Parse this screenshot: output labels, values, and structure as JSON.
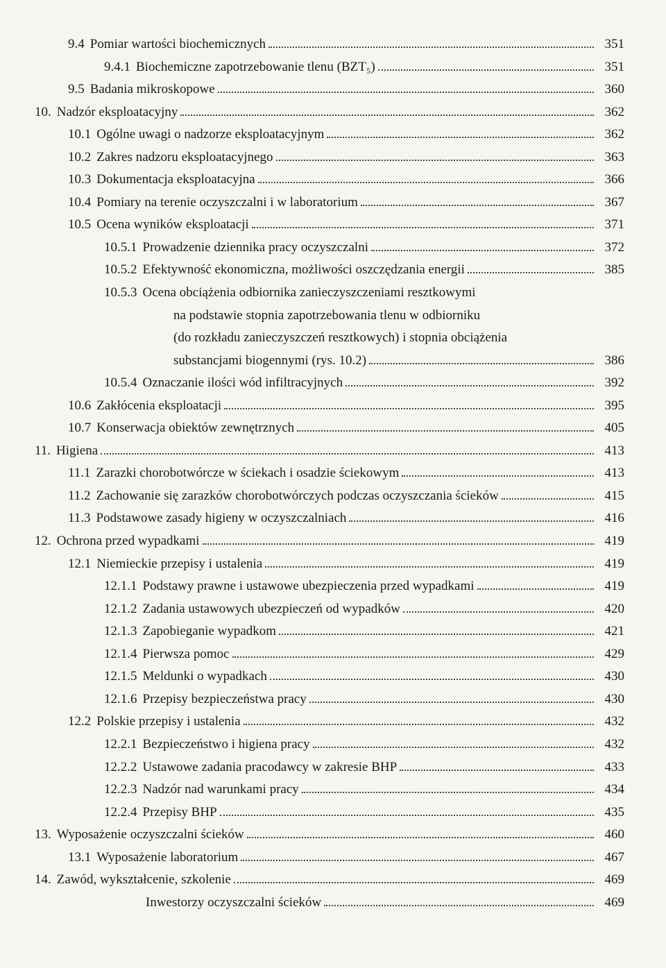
{
  "entries": [
    {
      "indent": 1,
      "num": "9.4",
      "label": "Pomiar wartości biochemicznych",
      "page": "351"
    },
    {
      "indent": 2,
      "num": "9.4.1",
      "label": "Biochemiczne zapotrzebowanie tlenu (BZT₅)",
      "page": "351"
    },
    {
      "indent": 1,
      "num": "9.5",
      "label": "Badania mikroskopowe",
      "page": "360"
    },
    {
      "indent": 0,
      "num": "10.",
      "label": "Nadzór eksploatacyjny",
      "page": "362"
    },
    {
      "indent": 1,
      "num": "10.1",
      "label": "Ogólne uwagi o nadzorze eksploatacyjnym",
      "page": "362"
    },
    {
      "indent": 1,
      "num": "10.2",
      "label": "Zakres nadzoru eksploatacyjnego",
      "page": "363"
    },
    {
      "indent": 1,
      "num": "10.3",
      "label": "Dokumentacja eksploatacyjna",
      "page": "366"
    },
    {
      "indent": 1,
      "num": "10.4",
      "label": "Pomiary na terenie oczyszczalni i w laboratorium",
      "page": "367"
    },
    {
      "indent": 1,
      "num": "10.5",
      "label": "Ocena wyników eksploatacji",
      "page": "371"
    },
    {
      "indent": 2,
      "num": "10.5.1",
      "label": "Prowadzenie dziennika pracy oczyszczalni",
      "page": "372"
    },
    {
      "indent": 2,
      "num": "10.5.2",
      "label": "Efektywność ekonomiczna, możliwości oszczędzania energii",
      "page": "385"
    },
    {
      "indent": 2,
      "num": "10.5.3",
      "label": "Ocena obciążenia odbiornika zanieczyszczeniami resztkowymi",
      "cont": [
        "na podstawie stopnia zapotrzebowania tlenu w odbiorniku",
        "(do rozkładu zanieczyszczeń resztkowych) i stopnia obciążenia"
      ],
      "lastLabel": "substancjami biogennymi (rys. 10.2)",
      "page": "386"
    },
    {
      "indent": 2,
      "num": "10.5.4",
      "label": "Oznaczanie ilości wód infiltracyjnych",
      "page": "392"
    },
    {
      "indent": 1,
      "num": "10.6",
      "label": "Zakłócenia eksploatacji",
      "page": "395"
    },
    {
      "indent": 1,
      "num": "10.7",
      "label": "Konserwacja obiektów zewnętrznych",
      "page": "405"
    },
    {
      "indent": 0,
      "num": "11.",
      "label": "Higiena",
      "page": "413"
    },
    {
      "indent": 1,
      "num": "11.1",
      "label": "Zarazki chorobotwórcze w ściekach i osadzie ściekowym",
      "page": "413"
    },
    {
      "indent": 1,
      "num": "11.2",
      "label": "Zachowanie się zarazków chorobotwórczych podczas oczyszczania ścieków",
      "page": "415"
    },
    {
      "indent": 1,
      "num": "11.3",
      "label": "Podstawowe zasady higieny w oczyszczalniach",
      "page": "416"
    },
    {
      "indent": 0,
      "num": "12.",
      "label": "Ochrona przed wypadkami",
      "page": "419"
    },
    {
      "indent": 1,
      "num": "12.1",
      "label": "Niemieckie przepisy i ustalenia",
      "page": "419"
    },
    {
      "indent": 2,
      "num": "12.1.1",
      "label": "Podstawy prawne i ustawowe ubezpieczenia przed wypadkami",
      "page": "419"
    },
    {
      "indent": 2,
      "num": "12.1.2",
      "label": "Zadania ustawowych ubezpieczeń od wypadków",
      "page": "420"
    },
    {
      "indent": 2,
      "num": "12.1.3",
      "label": "Zapobieganie wypadkom",
      "page": "421"
    },
    {
      "indent": 2,
      "num": "12.1.4",
      "label": "Pierwsza pomoc",
      "page": "429"
    },
    {
      "indent": 2,
      "num": "12.1.5",
      "label": "Meldunki o wypadkach",
      "page": "430"
    },
    {
      "indent": 2,
      "num": "12.1.6",
      "label": "Przepisy bezpieczeństwa pracy",
      "page": "430"
    },
    {
      "indent": 1,
      "num": "12.2",
      "label": "Polskie przepisy i ustalenia",
      "page": "432"
    },
    {
      "indent": 2,
      "num": "12.2.1",
      "label": "Bezpieczeństwo i higiena pracy",
      "page": "432"
    },
    {
      "indent": 2,
      "num": "12.2.2",
      "label": "Ustawowe zadania pracodawcy w zakresie BHP",
      "page": "433"
    },
    {
      "indent": 2,
      "num": "12.2.3",
      "label": "Nadzór nad warunkami pracy",
      "page": "434"
    },
    {
      "indent": 2,
      "num": "12.2.4",
      "label": "Przepisy BHP",
      "page": "435"
    },
    {
      "indent": 0,
      "num": "13.",
      "label": "Wyposażenie oczyszczalni ścieków",
      "page": "460"
    },
    {
      "indent": 1,
      "num": "13.1",
      "label": "Wyposażenie laboratorium",
      "page": "467"
    },
    {
      "indent": 0,
      "num": "14.",
      "label": "Zawód, wykształcenie, szkolenie",
      "page": "469"
    },
    {
      "indent": 3,
      "num": "",
      "label": "Inwestorzy oczyszczalni ścieków",
      "page": "469"
    }
  ]
}
